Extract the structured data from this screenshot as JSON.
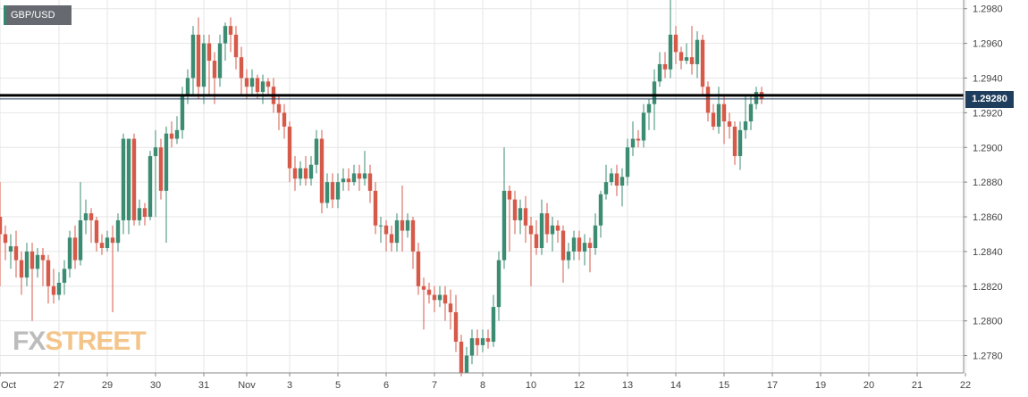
{
  "symbol": "GBP/USD",
  "current_price_label": "1.29280",
  "logo": {
    "fx": "FX",
    "street": "STREET"
  },
  "colors": {
    "up": "#3b8c72",
    "down": "#d65a4a",
    "grid": "#e6e6e6",
    "level_line": "#000000",
    "price_line": "#1f3e5e"
  },
  "chart_data": {
    "type": "candlestick",
    "ylim": [
      1.277,
      1.2985
    ],
    "y_ticks": [
      "1.2780",
      "1.2800",
      "1.2820",
      "1.2840",
      "1.2860",
      "1.2880",
      "1.2900",
      "1.2920",
      "1.2940",
      "1.2960",
      "1.2980"
    ],
    "y_tick_values": [
      1.278,
      1.28,
      1.282,
      1.284,
      1.286,
      1.288,
      1.29,
      1.292,
      1.294,
      1.296,
      1.298
    ],
    "x_ticks": [
      "Oct",
      "27",
      "29",
      "30",
      "31",
      "Nov",
      "3",
      "5",
      "6",
      "7",
      "8",
      "10",
      "12",
      "13",
      "14",
      "15",
      "17",
      "19",
      "20",
      "21",
      "22"
    ],
    "x_tick_index": [
      0,
      11,
      20,
      29,
      38,
      46,
      54,
      63,
      72,
      81,
      90,
      99,
      108,
      117,
      126,
      135,
      144,
      153,
      162,
      171,
      180
    ],
    "horizontal_level": 1.293,
    "current_price": 1.2928,
    "candles": [
      [
        1.286,
        1.285,
        1.288,
        1.282
      ],
      [
        1.285,
        1.2845,
        1.2855,
        1.2835
      ],
      [
        1.284,
        1.2843,
        1.285,
        1.283
      ],
      [
        1.2843,
        1.2835,
        1.2852,
        1.2825
      ],
      [
        1.2835,
        1.2825,
        1.284,
        1.2815
      ],
      [
        1.2825,
        1.284,
        1.2845,
        1.282
      ],
      [
        1.284,
        1.283,
        1.2845,
        1.28
      ],
      [
        1.283,
        1.2838,
        1.2842,
        1.2825
      ],
      [
        1.2838,
        1.2835,
        1.2842,
        1.282
      ],
      [
        1.2835,
        1.282,
        1.2838,
        1.281
      ],
      [
        1.282,
        1.2815,
        1.283,
        1.281
      ],
      [
        1.2815,
        1.2822,
        1.2828,
        1.2812
      ],
      [
        1.2822,
        1.283,
        1.2835,
        1.2815
      ],
      [
        1.283,
        1.2848,
        1.2852,
        1.2825
      ],
      [
        1.2848,
        1.2835,
        1.2855,
        1.283
      ],
      [
        1.2835,
        1.2858,
        1.288,
        1.2832
      ],
      [
        1.2858,
        1.2862,
        1.287,
        1.285
      ],
      [
        1.2862,
        1.2858,
        1.2865,
        1.2845
      ],
      [
        1.2858,
        1.2845,
        1.286,
        1.284
      ],
      [
        1.2845,
        1.2842,
        1.285,
        1.2838
      ],
      [
        1.2842,
        1.2848,
        1.2852,
        1.284
      ],
      [
        1.2848,
        1.2845,
        1.2855,
        1.2805
      ],
      [
        1.2845,
        1.2858,
        1.2862,
        1.284
      ],
      [
        1.2858,
        1.2905,
        1.2908,
        1.285
      ],
      [
        1.2858,
        1.2905,
        1.2905,
        1.285
      ],
      [
        1.2905,
        1.2858,
        1.2908,
        1.2855
      ],
      [
        1.2858,
        1.2865,
        1.287,
        1.2855
      ],
      [
        1.2865,
        1.286,
        1.2868,
        1.2855
      ],
      [
        1.286,
        1.2895,
        1.2898,
        1.2858
      ],
      [
        1.2895,
        1.29,
        1.291,
        1.286
      ],
      [
        1.29,
        1.2875,
        1.2905,
        1.287
      ],
      [
        1.2875,
        1.2908,
        1.2912,
        1.2845
      ],
      [
        1.2908,
        1.2905,
        1.2915,
        1.29
      ],
      [
        1.2905,
        1.291,
        1.2918,
        1.2902
      ],
      [
        1.291,
        1.293,
        1.2935,
        1.2905
      ],
      [
        1.293,
        1.294,
        1.2945,
        1.2925
      ],
      [
        1.294,
        1.2965,
        1.297,
        1.293
      ],
      [
        1.2965,
        1.2935,
        1.2975,
        1.2928
      ],
      [
        1.2935,
        1.296,
        1.2965,
        1.2925
      ],
      [
        1.296,
        1.295,
        1.2965,
        1.293
      ],
      [
        1.295,
        1.294,
        1.2955,
        1.2925
      ],
      [
        1.294,
        1.296,
        1.2965,
        1.2935
      ],
      [
        1.296,
        1.297,
        1.2972,
        1.295
      ],
      [
        1.297,
        1.2965,
        1.2975,
        1.2955
      ],
      [
        1.2965,
        1.2952,
        1.297,
        1.2945
      ],
      [
        1.2952,
        1.294,
        1.2958,
        1.293
      ],
      [
        1.294,
        1.2935,
        1.2945,
        1.2928
      ],
      [
        1.2935,
        1.294,
        1.2945,
        1.293
      ],
      [
        1.294,
        1.2932,
        1.2942,
        1.2928
      ],
      [
        1.2932,
        1.2938,
        1.2942,
        1.2925
      ],
      [
        1.2938,
        1.2935,
        1.294,
        1.293
      ],
      [
        1.2935,
        1.2925,
        1.294,
        1.292
      ],
      [
        1.2925,
        1.292,
        1.293,
        1.291
      ],
      [
        1.292,
        1.2912,
        1.2925,
        1.2905
      ],
      [
        1.2912,
        1.2888,
        1.2915,
        1.288
      ],
      [
        1.2888,
        1.2882,
        1.2895,
        1.2875
      ],
      [
        1.2882,
        1.2888,
        1.2892,
        1.2878
      ],
      [
        1.2888,
        1.2882,
        1.2895,
        1.2878
      ],
      [
        1.2882,
        1.289,
        1.2895,
        1.2878
      ],
      [
        1.289,
        1.2905,
        1.291,
        1.2885
      ],
      [
        1.2905,
        1.2868,
        1.291,
        1.2862
      ],
      [
        1.2868,
        1.288,
        1.2885,
        1.2865
      ],
      [
        1.288,
        1.287,
        1.2885,
        1.2865
      ],
      [
        1.287,
        1.288,
        1.2885,
        1.2865
      ],
      [
        1.288,
        1.2882,
        1.2888,
        1.2875
      ],
      [
        1.2882,
        1.288,
        1.2888,
        1.2875
      ],
      [
        1.288,
        1.2885,
        1.289,
        1.2878
      ],
      [
        1.2885,
        1.2882,
        1.289,
        1.2875
      ],
      [
        1.2882,
        1.2885,
        1.2898,
        1.2878
      ],
      [
        1.2885,
        1.2875,
        1.289,
        1.2868
      ],
      [
        1.2875,
        1.2855,
        1.288,
        1.285
      ],
      [
        1.2855,
        1.2855,
        1.286,
        1.2845
      ],
      [
        1.2855,
        1.285,
        1.2858,
        1.284
      ],
      [
        1.285,
        1.2845,
        1.2855,
        1.284
      ],
      [
        1.2845,
        1.2858,
        1.2862,
        1.284
      ],
      [
        1.2858,
        1.2852,
        1.2878,
        1.284
      ],
      [
        1.2852,
        1.2858,
        1.2862,
        1.2848
      ],
      [
        1.2858,
        1.284,
        1.286,
        1.283
      ],
      [
        1.284,
        1.282,
        1.2845,
        1.2815
      ],
      [
        1.282,
        1.2818,
        1.2825,
        1.2795
      ],
      [
        1.2818,
        1.2815,
        1.2822,
        1.281
      ],
      [
        1.2815,
        1.2812,
        1.282,
        1.2805
      ],
      [
        1.2812,
        1.2815,
        1.282,
        1.2808
      ],
      [
        1.2815,
        1.281,
        1.282,
        1.28
      ],
      [
        1.281,
        1.2805,
        1.2818,
        1.2795
      ],
      [
        1.2805,
        1.2788,
        1.2815,
        1.2782
      ],
      [
        1.2788,
        1.277,
        1.2792,
        1.2768
      ],
      [
        1.277,
        1.278,
        1.2785,
        1.2772
      ],
      [
        1.278,
        1.279,
        1.2795,
        1.2775
      ],
      [
        1.279,
        1.2786,
        1.2795,
        1.278
      ],
      [
        1.2786,
        1.279,
        1.2795,
        1.2782
      ],
      [
        1.279,
        1.2788,
        1.2795,
        1.2784
      ],
      [
        1.2788,
        1.2808,
        1.2815,
        1.2785
      ],
      [
        1.2808,
        1.2835,
        1.284,
        1.28
      ],
      [
        1.2835,
        1.2875,
        1.29,
        1.283
      ],
      [
        1.2875,
        1.287,
        1.2878,
        1.284
      ],
      [
        1.287,
        1.2858,
        1.2875,
        1.285
      ],
      [
        1.2858,
        1.2865,
        1.287,
        1.285
      ],
      [
        1.2865,
        1.2855,
        1.2872,
        1.2845
      ],
      [
        1.2855,
        1.285,
        1.286,
        1.282
      ],
      [
        1.285,
        1.2842,
        1.2858,
        1.2838
      ],
      [
        1.2842,
        1.2862,
        1.287,
        1.2838
      ],
      [
        1.2862,
        1.285,
        1.2868,
        1.2845
      ],
      [
        1.285,
        1.2855,
        1.286,
        1.284
      ],
      [
        1.2855,
        1.2852,
        1.2858,
        1.2845
      ],
      [
        1.2852,
        1.2835,
        1.2855,
        1.2822
      ],
      [
        1.2835,
        1.284,
        1.2845,
        1.283
      ],
      [
        1.284,
        1.2848,
        1.2852,
        1.2835
      ],
      [
        1.2848,
        1.284,
        1.2852,
        1.2835
      ],
      [
        1.284,
        1.2845,
        1.285,
        1.2832
      ],
      [
        1.2845,
        1.2842,
        1.2848,
        1.2828
      ],
      [
        1.2842,
        1.2855,
        1.2862,
        1.2838
      ],
      [
        1.2855,
        1.2873,
        1.2875,
        1.2848
      ],
      [
        1.2873,
        1.288,
        1.289,
        1.287
      ],
      [
        1.288,
        1.2885,
        1.2888,
        1.2878
      ],
      [
        1.2885,
        1.2878,
        1.289,
        1.2872
      ],
      [
        1.2878,
        1.2883,
        1.2888,
        1.2866
      ],
      [
        1.2883,
        1.29,
        1.2905,
        1.2878
      ],
      [
        1.29,
        1.2905,
        1.2915,
        1.2895
      ],
      [
        1.2905,
        1.2904,
        1.291,
        1.29
      ],
      [
        1.2904,
        1.292,
        1.2925,
        1.29
      ],
      [
        1.292,
        1.2925,
        1.2928,
        1.291
      ],
      [
        1.2925,
        1.2938,
        1.2945,
        1.291
      ],
      [
        1.2938,
        1.2948,
        1.2955,
        1.2935
      ],
      [
        1.2948,
        1.2945,
        1.2955,
        1.294
      ],
      [
        1.2945,
        1.2965,
        1.2985,
        1.294
      ],
      [
        1.2965,
        1.2955,
        1.297,
        1.2948
      ],
      [
        1.2955,
        1.295,
        1.2958,
        1.2945
      ],
      [
        1.295,
        1.2952,
        1.296,
        1.2948
      ],
      [
        1.2952,
        1.2948,
        1.297,
        1.2942
      ],
      [
        1.2948,
        1.2962,
        1.2967,
        1.294
      ],
      [
        1.2962,
        1.2935,
        1.2965,
        1.293
      ],
      [
        1.2935,
        1.292,
        1.2938,
        1.2915
      ],
      [
        1.292,
        1.2912,
        1.2925,
        1.291
      ],
      [
        1.2912,
        1.2925,
        1.2935,
        1.2908
      ],
      [
        1.2925,
        1.2915,
        1.293,
        1.2902
      ],
      [
        1.2915,
        1.2912,
        1.292,
        1.2905
      ],
      [
        1.2912,
        1.2895,
        1.2915,
        1.289
      ],
      [
        1.2895,
        1.291,
        1.2915,
        1.2887
      ],
      [
        1.291,
        1.2915,
        1.293,
        1.2905
      ],
      [
        1.2915,
        1.2925,
        1.293,
        1.291
      ],
      [
        1.2925,
        1.2932,
        1.2935,
        1.2922
      ],
      [
        1.2932,
        1.2928,
        1.2935,
        1.2925
      ]
    ]
  }
}
